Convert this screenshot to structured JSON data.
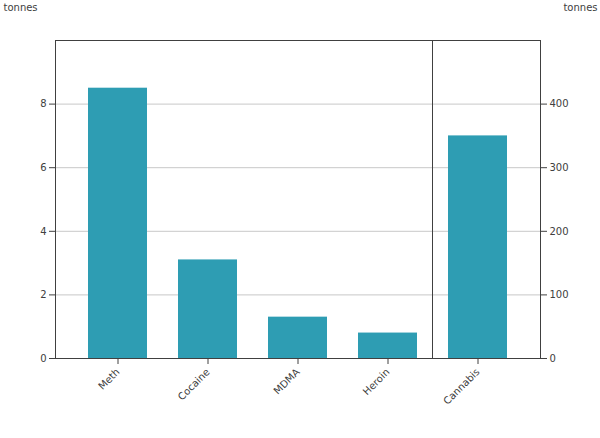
{
  "chart_data": {
    "type": "bar",
    "categories": [
      "Meth",
      "Cocaine",
      "MDMA",
      "Heroin",
      "Cannabis"
    ],
    "series": [
      {
        "values": [
          8.5,
          3.1,
          1.3,
          0.8,
          null
        ],
        "color": "#2e9db3"
      },
      {
        "values": [
          null,
          null,
          null,
          null,
          350
        ],
        "color": "#2e9db3",
        "axis": "y2"
      }
    ],
    "ylabel": "tonnes",
    "y2label": "tonnes",
    "ylim": [
      0,
      10
    ],
    "yticks": [
      0,
      2,
      4,
      6,
      8
    ],
    "y2lim": [
      0,
      500
    ],
    "y2ticks": [
      0,
      100,
      200,
      300,
      400
    ],
    "grid": true
  }
}
